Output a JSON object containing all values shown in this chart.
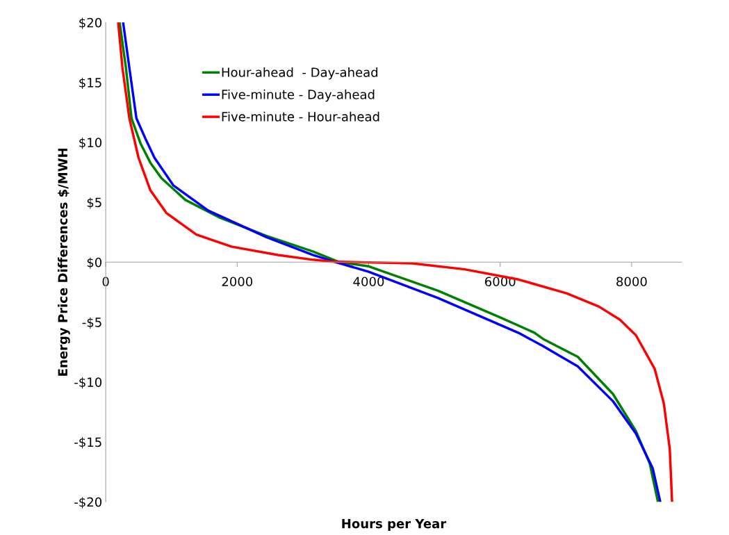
{
  "chart_data": {
    "type": "line",
    "xlabel": "Hours per Year",
    "ylabel": "Energy Price Differences $/MWH",
    "xlim": [
      0,
      8760
    ],
    "xticks": [
      0,
      2000,
      4000,
      6000,
      8000
    ],
    "ylim": [
      -20,
      20
    ],
    "yticks": [
      {
        "value": -20,
        "label": "-$20"
      },
      {
        "value": -15,
        "label": "-$15"
      },
      {
        "value": -10,
        "label": "-$10"
      },
      {
        "value": -5,
        "label": "-$5"
      },
      {
        "value": 0,
        "label": "$0"
      },
      {
        "value": 5,
        "label": "$5"
      },
      {
        "value": 10,
        "label": "$10"
      },
      {
        "value": 15,
        "label": "$15"
      },
      {
        "value": 20,
        "label": "$20"
      }
    ],
    "grid": false,
    "legend": "top left",
    "marker": "none",
    "line_style": "solid",
    "series": [
      {
        "name": "Hour-ahead  - Day-ahead",
        "color": "#008000",
        "x": [
          212,
          308,
          393,
          530,
          679,
          849,
          1210,
          1740,
          2440,
          3150,
          3555,
          4000,
          5060,
          5995,
          6525,
          6650,
          7180,
          7715,
          8065,
          8275,
          8400
        ],
        "values": [
          20,
          16.2,
          12.0,
          9.9,
          8.3,
          7.0,
          5.2,
          3.7,
          2.2,
          0.9,
          0,
          -0.35,
          -2.4,
          -4.6,
          -5.9,
          -6.4,
          -7.9,
          -11.0,
          -14.1,
          -16.8,
          -20
        ]
      },
      {
        "name": "Five-minute - Day-ahead",
        "color": "#0000ff",
        "x": [
          265,
          360,
          467,
          605,
          743,
          1030,
          1560,
          2440,
          3150,
          3500,
          4000,
          5060,
          6280,
          6650,
          7180,
          7715,
          8065,
          8320,
          8435
        ],
        "values": [
          20,
          16.2,
          12.0,
          10.3,
          8.7,
          6.4,
          4.3,
          2.1,
          0.6,
          0,
          -0.8,
          -3.0,
          -5.9,
          -7.0,
          -8.7,
          -11.6,
          -14.3,
          -17.2,
          -20
        ]
      },
      {
        "name": "Five-minute - Hour-ahead",
        "color": "#ff0000",
        "x": [
          190,
          255,
          360,
          500,
          679,
          923,
          1380,
          1910,
          2620,
          3150,
          3440,
          4660,
          5460,
          6280,
          7010,
          7500,
          7820,
          8065,
          8350,
          8490,
          8580,
          8615
        ],
        "values": [
          20,
          16.2,
          12.0,
          8.7,
          6.0,
          4.1,
          2.3,
          1.3,
          0.6,
          0.2,
          0.05,
          -0.1,
          -0.6,
          -1.45,
          -2.6,
          -3.7,
          -4.8,
          -6.1,
          -8.9,
          -11.8,
          -15.6,
          -20
        ]
      }
    ]
  }
}
